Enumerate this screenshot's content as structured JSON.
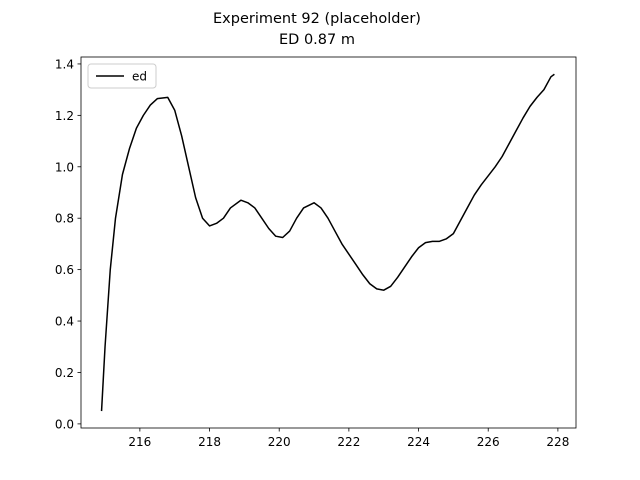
{
  "chart_data": {
    "type": "line",
    "title": "Experiment 92 (placeholder)",
    "subtitle": "ED 0.87 m",
    "x": [
      214.9,
      215.0,
      215.15,
      215.3,
      215.5,
      215.7,
      215.9,
      216.1,
      216.3,
      216.5,
      216.8,
      217.0,
      217.2,
      217.4,
      217.6,
      217.8,
      218.0,
      218.2,
      218.4,
      218.6,
      218.9,
      219.1,
      219.3,
      219.5,
      219.7,
      219.9,
      220.1,
      220.3,
      220.5,
      220.7,
      221.0,
      221.2,
      221.4,
      221.6,
      221.8,
      222.0,
      222.2,
      222.4,
      222.6,
      222.8,
      223.0,
      223.2,
      223.4,
      223.6,
      223.8,
      224.0,
      224.2,
      224.4,
      224.6,
      224.8,
      225.0,
      225.2,
      225.4,
      225.6,
      225.8,
      226.0,
      226.2,
      226.4,
      226.6,
      226.8,
      227.0,
      227.2,
      227.4,
      227.6,
      227.8,
      227.9
    ],
    "series": [
      {
        "name": "ed",
        "color": "#000000",
        "values": [
          0.05,
          0.3,
          0.6,
          0.8,
          0.97,
          1.07,
          1.15,
          1.2,
          1.24,
          1.265,
          1.27,
          1.22,
          1.12,
          1.0,
          0.88,
          0.8,
          0.77,
          0.78,
          0.8,
          0.84,
          0.87,
          0.86,
          0.84,
          0.8,
          0.76,
          0.73,
          0.725,
          0.75,
          0.8,
          0.84,
          0.86,
          0.84,
          0.8,
          0.75,
          0.7,
          0.66,
          0.62,
          0.58,
          0.545,
          0.525,
          0.52,
          0.535,
          0.57,
          0.61,
          0.65,
          0.685,
          0.705,
          0.71,
          0.71,
          0.72,
          0.74,
          0.79,
          0.84,
          0.89,
          0.93,
          0.965,
          1.0,
          1.04,
          1.09,
          1.14,
          1.19,
          1.235,
          1.27,
          1.3,
          1.35,
          1.36
        ]
      }
    ],
    "xlim": [
      214.31,
      228.52
    ],
    "ylim": [
      -0.016,
      1.427
    ],
    "xticks": [
      216,
      218,
      220,
      222,
      224,
      226,
      228
    ],
    "yticks": [
      {
        "value": 0,
        "label": "0.0"
      },
      0.2,
      0.4,
      0.6,
      0.8,
      {
        "value": 1,
        "label": "1.0"
      },
      1.2,
      1.4
    ],
    "legend": "upper left",
    "grid": false
  }
}
